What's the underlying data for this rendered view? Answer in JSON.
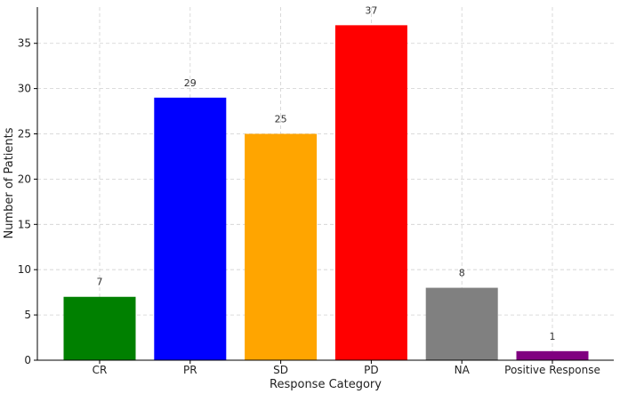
{
  "chart_data": {
    "type": "bar",
    "title": "",
    "xlabel": "Response Category",
    "ylabel": "Number of Patients",
    "categories": [
      "CR",
      "PR",
      "SD",
      "PD",
      "NA",
      "Positive Response"
    ],
    "values": [
      7,
      29,
      25,
      37,
      8,
      1
    ],
    "colors": [
      "#008000",
      "#0000ff",
      "#ffa500",
      "#ff0000",
      "#808080",
      "#800080"
    ],
    "data_labels": [
      "7",
      "29",
      "25",
      "37",
      "8",
      "1"
    ],
    "ylim": [
      0,
      39
    ],
    "yticks": [
      0,
      5,
      10,
      15,
      20,
      25,
      30,
      35
    ],
    "ytick_labels": [
      "0",
      "5",
      "10",
      "15",
      "20",
      "25",
      "30",
      "35"
    ],
    "grid": true,
    "grid_style": "dashed",
    "legend": "none"
  }
}
